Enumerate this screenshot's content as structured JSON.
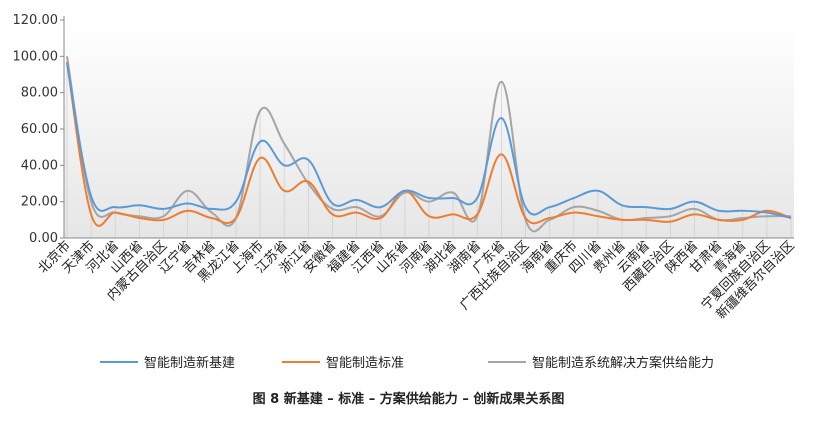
{
  "caption": "图 8    新基建 – 标准 – 方案供给能力 – 创新成果关系图",
  "chart_data": {
    "type": "line",
    "title": "",
    "xlabel": "",
    "ylabel": "",
    "ylim": [
      0,
      120
    ],
    "yticks": [
      "0.00",
      "20.00",
      "40.00",
      "60.00",
      "80.00",
      "100.00",
      "120.00"
    ],
    "grid": "vertical drop lines",
    "legend_position": "bottom",
    "categories": [
      "北京市",
      "天津市",
      "河北省",
      "山西省",
      "内蒙古自治区",
      "辽宁省",
      "吉林省",
      "黑龙江省",
      "上海市",
      "江苏省",
      "浙江省",
      "安徽省",
      "福建省",
      "江西省",
      "山东省",
      "河南省",
      "湖北省",
      "湖南省",
      "广东省",
      "广西壮族自治区",
      "海南省",
      "重庆市",
      "四川省",
      "贵州省",
      "云南省",
      "西藏自治区",
      "陕西省",
      "甘肃省",
      "青海省",
      "宁夏回族自治区",
      "新疆维吾尔自治区"
    ],
    "series": [
      {
        "name": "智能制造新基建",
        "color": "#5b9bd5",
        "values": [
          96,
          23,
          17,
          18,
          16,
          19,
          16,
          20,
          53,
          40,
          43,
          19,
          21,
          17,
          26,
          22,
          22,
          22,
          66,
          17,
          17,
          22,
          26,
          18,
          17,
          16,
          20,
          15,
          15,
          14,
          11
        ]
      },
      {
        "name": "智能制造标准",
        "color": "#ed7d31",
        "values": [
          97,
          13,
          14,
          11,
          10,
          15,
          11,
          11,
          44,
          26,
          31,
          13,
          14,
          11,
          26,
          12,
          13,
          13,
          46,
          11,
          11,
          14,
          12,
          10,
          10,
          9,
          13,
          10,
          10,
          15,
          11
        ]
      },
      {
        "name": "智能制造系统解决方案供给能力",
        "color": "#a5a5a5",
        "values": [
          100,
          20,
          14,
          12,
          12,
          26,
          14,
          11,
          70,
          52,
          30,
          16,
          17,
          12,
          25,
          20,
          25,
          12,
          86,
          10,
          10,
          17,
          15,
          10,
          11,
          12,
          16,
          10,
          11,
          12,
          12
        ]
      }
    ]
  }
}
